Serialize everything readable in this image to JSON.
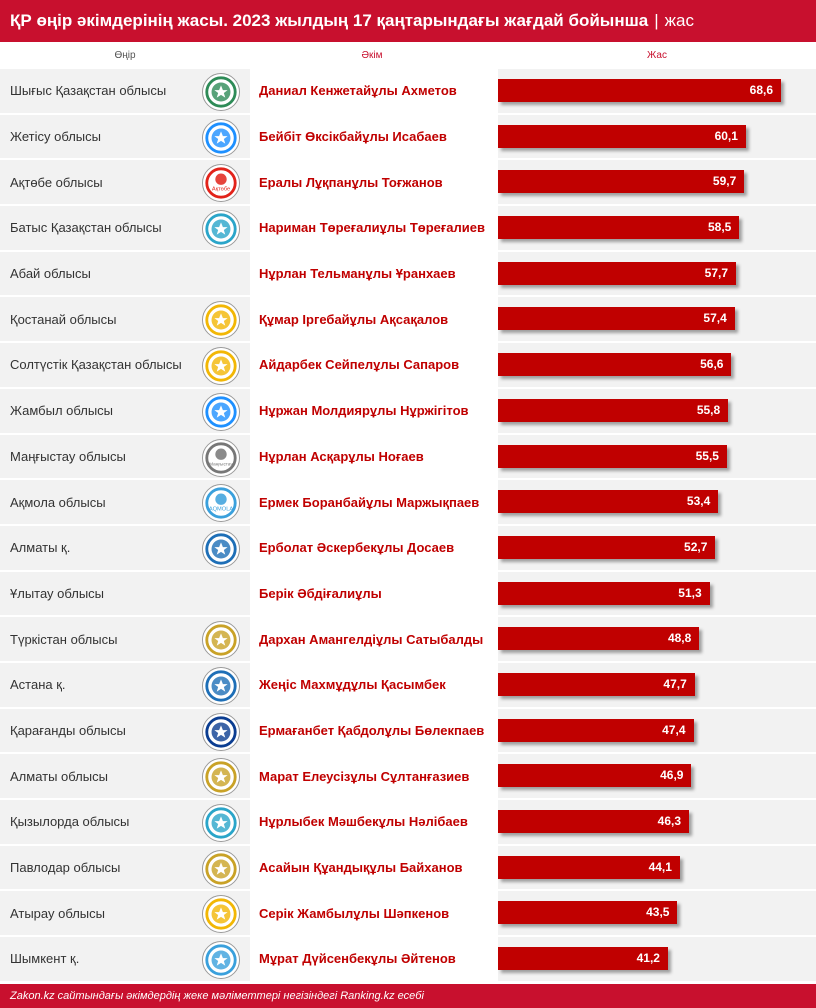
{
  "title": {
    "main": "ҚР өңір әкімдерінің жасы. 2023 жылдың 17 қаңтарындағы жағдай бойынша",
    "separator": "|",
    "unit": "жас"
  },
  "headers": {
    "region": "Өңір",
    "akim": "Әкім",
    "age": "Жас"
  },
  "footer": "Zakon.kz сайтындағы әкімдердің жеке мәліметтері негізіндегі Ranking.kz есебі",
  "colors": {
    "accent": "#c8102e",
    "bar": "#c00000",
    "row_bg": "#f2f2f2"
  },
  "chart_data": {
    "type": "bar",
    "orientation": "horizontal",
    "xlim": [
      0,
      70
    ],
    "categories": [
      "Шығыс Қазақстан облысы",
      "Жетісу облысы",
      "Ақтөбе облысы",
      "Батыс Қазақстан облысы",
      "Абай облысы",
      "Қостанай облысы",
      "Солтүстік Қазақстан облысы",
      "Жамбыл облысы",
      "Маңғыстау облысы",
      "Ақмола облысы",
      "Алматы қ.",
      "Ұлытау облысы",
      "Түркістан облысы",
      "Астана қ.",
      "Қарағанды облысы",
      "Алматы облысы",
      "Қызылорда облысы",
      "Павлодар облысы",
      "Атырау облысы",
      "Шымкент қ."
    ],
    "akims": [
      "Даниал Кенжетайұлы Ахметов",
      "Бейбіт Өксікбайұлы Исабаев",
      "Ералы Лұқпанұлы Тоғжанов",
      "Нариман Төреғалиұлы Төреғалиев",
      "Нұрлан Тельманұлы Ұранхаев",
      "Құмар Іргебайұлы Ақсақалов",
      "Айдарбек Сейпелұлы Сапаров",
      "Нұржан Молдиярұлы Нұржігітов",
      "Нұрлан Асқарұлы Ноғаев",
      "Ермек Боранбайұлы Маржықпаев",
      "Ерболат Әскербекұлы Досаев",
      "Берік Әбдіғалиұлы",
      "Дархан Амангелдіұлы Сатыбалды",
      "Жеңіс Махмұдұлы Қасымбек",
      "Ермағанбет Қабдолұлы Бөлекпаев",
      "Марат Елеусізұлы Сұлтанғазиев",
      "Нұрлыбек Мәшбекұлы Нәлібаев",
      "Асайын Құандықұлы Байханов",
      "Серік Жамбылұлы Шәпкенов",
      "Мұрат Дүйсенбекұлы Әйтенов"
    ],
    "values": [
      68.6,
      60.1,
      59.7,
      58.5,
      57.7,
      57.4,
      56.6,
      55.8,
      55.5,
      53.4,
      52.7,
      51.3,
      48.8,
      47.7,
      47.4,
      46.9,
      46.3,
      44.1,
      43.5,
      41.2
    ],
    "value_labels": [
      "68,6",
      "60,1",
      "59,7",
      "58,5",
      "57,7",
      "57,4",
      "56,6",
      "55,8",
      "55,5",
      "53,4",
      "52,7",
      "51,3",
      "48,8",
      "47,7",
      "47,4",
      "46,9",
      "46,3",
      "44,1",
      "43,5",
      "41,2"
    ],
    "emblem_shown": [
      true,
      true,
      true,
      true,
      false,
      true,
      true,
      true,
      true,
      true,
      true,
      false,
      true,
      true,
      true,
      true,
      true,
      true,
      true,
      true
    ],
    "emblem_texts": [
      "",
      "",
      "Ақтөбе",
      "",
      "",
      "",
      "",
      "",
      "Маңғыстау",
      "AQMOLA",
      "",
      "",
      "",
      "",
      "",
      "",
      "",
      "",
      "",
      ""
    ],
    "emblem_colors": [
      "#2e8b57",
      "#1e90ff",
      "#e2231a",
      "#2aa5c9",
      "",
      "#f2b705",
      "#f2b705",
      "#1e90ff",
      "#777777",
      "#3aa0dc",
      "#1e6fb7",
      "",
      "#c9a227",
      "#1e6fb7",
      "#0b3d91",
      "#c9a227",
      "#2aa5c9",
      "#c9a227",
      "#f2b705",
      "#3aa0dc"
    ]
  }
}
